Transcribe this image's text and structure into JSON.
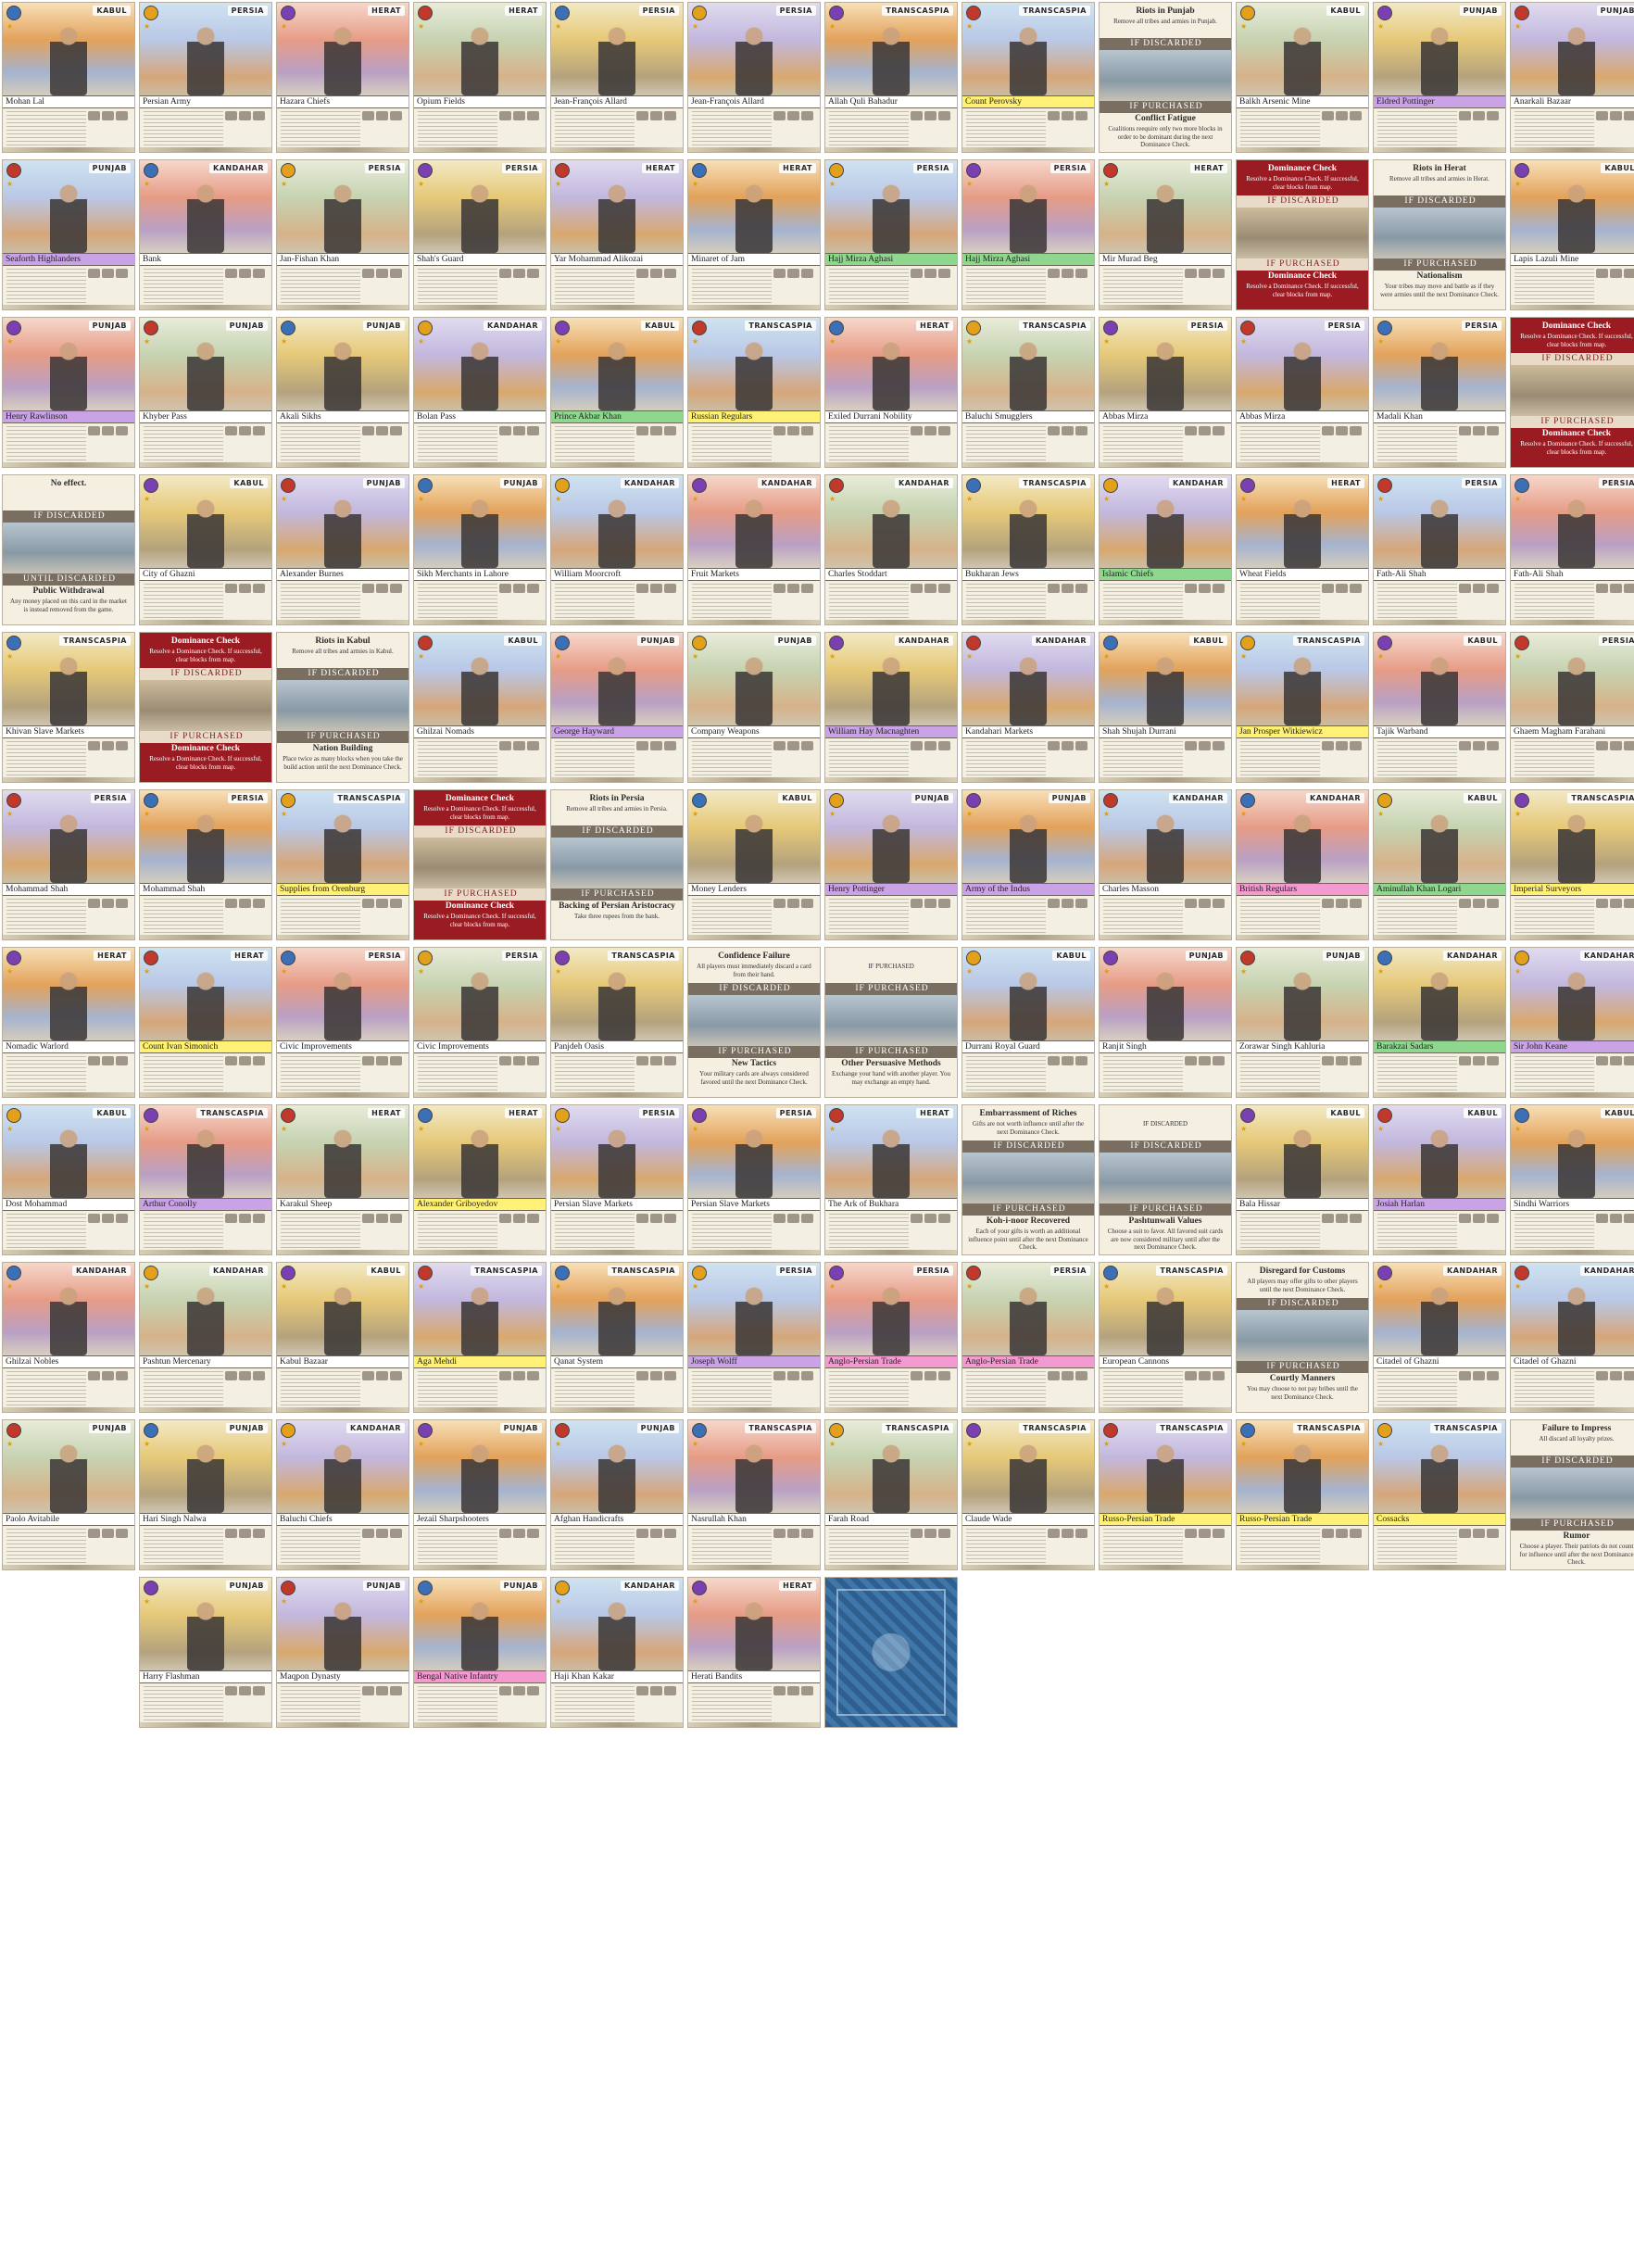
{
  "sheet": {
    "rows": [
      [
        "KABUL|Mohan Lal|",
        "PERSIA|Persian Army|",
        "HERAT|Hazara Chiefs|",
        "HERAT|Opium Fields|",
        "PERSIA|Jean-François Allard|",
        "PERSIA|Jean-François Allard|",
        "TRANSCASPIA|Allah Quli Bahadur|",
        "TRANSCASPIA|Count Perovsky|highlight",
        "EVENT:Riots in Punjab|Remove all tribes and armies in Punjab.|IF DISCARDED|IF PURCHASED|Conflict Fatigue|Coalitions reequire only two more blocks in order to be dominant during the next Dominance Check.",
        "KABUL|Balkh Arsenic Mine|",
        "PUNJAB|Eldred Pottinger|purple",
        "PUNJAB|Anarkali Bazaar|"
      ],
      [
        "PUNJAB|Seaforth Highlanders|purple",
        "KANDAHAR|Bank|",
        "PERSIA|Jan-Fishan Khan|",
        "PERSIA|Shah's Guard|",
        "HERAT|Yar Mohammad Alikozai|",
        "HERAT|Minaret of Jam|",
        "PERSIA|Hajj Mirza Aghasi|green",
        "PERSIA|Hajj Mirza Aghasi|green",
        "HERAT|Mir Murad Beg|",
        "EVENT-RED:Dominance Check|Resolve a Dominance Check. If successful, clear blocks from map.|IF DISCARDED|IF PURCHASED|Dominance Check|Resolve a Dominance Check. If successful, clear blocks from map.",
        "EVENT:Riots in Herat|Remove all tribes and armies in Herat.|IF DISCARDED|IF PURCHASED|Nationalism|Your tribes may move and battle as if they were armies until the next Dominance Check.",
        "KABUL|Lapis Lazuli Mine|"
      ],
      [
        "PUNJAB|Henry Rawlinson|purple",
        "PUNJAB|Khyber Pass|",
        "PUNJAB|Akali Sikhs|",
        "KANDAHAR|Bolan Pass|",
        "KABUL|Prince Akbar Khan|green",
        "TRANSCASPIA|Russian Regulars|highlight",
        "HERAT|Exiled Durrani Nobility|",
        "TRANSCASPIA|Baluchi Smugglers|",
        "PERSIA|Abbas Mirza|",
        "PERSIA|Abbas Mirza|",
        "PERSIA|Madali Khan|",
        "EVENT-RED:Dominance Check|Resolve a Dominance Check. If successful, clear blocks from map.|IF DISCARDED|IF PURCHASED|Dominance Check|Resolve a Dominance Check. If successful, clear blocks from map."
      ],
      [
        "EVENT:No effect.||IF DISCARDED|UNTIL DISCARDED|Public Withdrawal|Any money placed on this card in the market is instead removed from the game.",
        "KABUL|City of Ghazni|",
        "PUNJAB|Alexander Burnes|",
        "PUNJAB|Sikh Merchants in Lahore|",
        "KANDAHAR|William Moorcroft|",
        "KANDAHAR|Fruit Markets|",
        "KANDAHAR|Charles Stoddart|",
        "TRANSCASPIA|Bukharan Jews|",
        "KANDAHAR|Islamic Chiefs|green",
        "HERAT|Wheat Fields|",
        "PERSIA|Fath-Ali Shah|",
        "PERSIA|Fath-Ali Shah|"
      ],
      [
        "TRANSCASPIA|Khivan Slave Markets|",
        "EVENT-RED:Dominance Check|Resolve a Dominance Check. If successful, clear blocks from map.|IF DISCARDED|IF PURCHASED|Dominance Check|Resolve a Dominance Check. If successful, clear blocks from map.",
        "EVENT:Riots in Kabul|Remove all tribes and armies in Kabul.|IF DISCARDED|IF PURCHASED|Nation Building|Place twice as many blocks when you take the build action until the next Dominance Check.",
        "KABUL|Ghilzai Nomads|",
        "PUNJAB|George Hayward|purple",
        "PUNJAB|Company Weapons|",
        "KANDAHAR|William Hay Macnaghten|purple",
        "KANDAHAR|Kandahari Markets|",
        "KABUL|Shah Shujah Durrani|",
        "TRANSCASPIA|Jan Prosper Witkiewicz|highlight",
        "KABUL|Tajik Warband|",
        "PERSIA|Ghaem Magham Farahani|"
      ],
      [
        "PERSIA|Mohammad Shah|",
        "PERSIA|Mohammad Shah|",
        "TRANSCASPIA|Supplies from Orenburg|highlight",
        "EVENT-RED:Dominance Check|Resolve a Dominance Check. If successful, clear blocks from map.|IF DISCARDED|IF PURCHASED|Dominance Check|Resolve a Dominance Check. If successful, clear blocks from map.",
        "EVENT:Riots in Persia|Remove all tribes and armies in Persia.|IF DISCARDED|IF PURCHASED|Backing of Persian Aristocracy|Take three rupees from the bank.",
        "KABUL|Money Lenders|",
        "PUNJAB|Henry Pottinger|purple",
        "PUNJAB|Army of the Indus|purple",
        "KANDAHAR|Charles Masson|",
        "KANDAHAR|British Regulars|pink",
        "KABUL|Aminullah Khan Logari|green",
        "TRANSCASPIA|Imperial Surveyors|highlight"
      ],
      [
        "HERAT|Nomadic Warlord|",
        "HERAT|Count Ivan Simonich|highlight",
        "PERSIA|Civic Improvements|",
        "PERSIA|Civic Improvements|",
        "TRANSCASPIA|Panjdeh Oasis|",
        "EVENT:Confidence Failure|All players must immediately discard a card from their hand.|IF DISCARDED|IF PURCHASED|New Tactics|Your military cards are always considered favored until the next Dominance Check.",
        "EVENT:|IF PURCHASED|IF PURCHASED|IF PURCHASED|Other Persuasive Methods|Exchange your hand with another player. You may exchange an empty hand.",
        "KABUL|Durrani Royal Guard|",
        "PUNJAB|Ranjit Singh|",
        "PUNJAB|Zorawar Singh Kahluria|",
        "KANDAHAR|Barakzai Sadars|green",
        "KANDAHAR|Sir John Keane|purple"
      ],
      [
        "KABUL|Dost Mohammad|",
        "TRANSCASPIA|Arthur Conolly|purple",
        "HERAT|Karakul Sheep|",
        "HERAT|Alexander Griboyedov|highlight",
        "PERSIA|Persian Slave Markets|",
        "PERSIA|Persian Slave Markets|",
        "HERAT|The Ark of Bukhara|",
        "EVENT:Embarrassment of Riches|Gifts are not worth influence until after the next Dominance Check.|IF DISCARDED|IF PURCHASED|Koh-i-noor Recovered|Each of your gifts is worth an additional influence point until after the next Dominance Check.",
        "EVENT:|IF DISCARDED|IF DISCARDED|IF PURCHASED|Pashtunwali Values|Choose a suit to favor. All favored suit cards are now considered military until after the next Dominance Check.",
        "KABUL|Bala Hissar|",
        "KABUL|Josiah Harlan|purple",
        "KABUL|Sindhi Warriors|"
      ],
      [
        "KANDAHAR|Ghilzai Nobles|",
        "KANDAHAR|Pashtun Mercenary|",
        "KABUL|Kabul Bazaar|",
        "TRANSCASPIA|Aga Mehdi|highlight",
        "TRANSCASPIA|Qanat System|",
        "PERSIA|Joseph Wolff|purple",
        "PERSIA|Anglo-Persian Trade|pink",
        "PERSIA|Anglo-Persian Trade|pink",
        "TRANSCASPIA|European Cannons|",
        "EVENT:Disregard for Customs|All players may offer gifts to other players until the next Dominance Check.|IF DISCARDED|IF PURCHASED|Courtly Manners|You may choose to not pay bribes until the next Dominance Check.",
        "KANDAHAR|Citadel of Ghazni|",
        "KANDAHAR|Citadel of Ghazni|"
      ],
      [
        "PUNJAB|Paolo Avitabile|",
        "PUNJAB|Hari Singh Nalwa|",
        "KANDAHAR|Baluchi Chiefs|",
        "PUNJAB|Jezail Sharpshooters|",
        "PUNJAB|Afghan Handicrafts|",
        "TRANSCASPIA|Nasrullah Khan|",
        "TRANSCASPIA|Farah Road|",
        "TRANSCASPIA|Claude Wade|",
        "TRANSCASPIA|Russo-Persian Trade|highlight",
        "TRANSCASPIA|Russo-Persian Trade|highlight",
        "TRANSCASPIA|Cossacks|highlight",
        "EVENT:Failure to Impress|All discard all loyalty prizes.|IF DISCARDED|IF PURCHASED|Rumor|Choose a player. Their patriots do not count for influence until after the next Dominance Check."
      ],
      [
        "PUNJAB|Harry Flashman|",
        "PUNJAB|Maqpon Dynasty|",
        "PUNJAB|Bengal Native Infantry|pink",
        "KANDAHAR|Haji Khan Kakar|",
        "HERAT|Herati Bandits|",
        "BACK"
      ]
    ]
  },
  "colors": {
    "event_red": "#9a1b22",
    "band_gray": "#7a6e60",
    "name_highlight_yellow": "#fff176",
    "name_highlight_purple": "#c9a3e6",
    "name_highlight_green": "#8fd68f",
    "name_highlight_pink": "#f39ad0",
    "card_back_blue": "#35679a"
  }
}
